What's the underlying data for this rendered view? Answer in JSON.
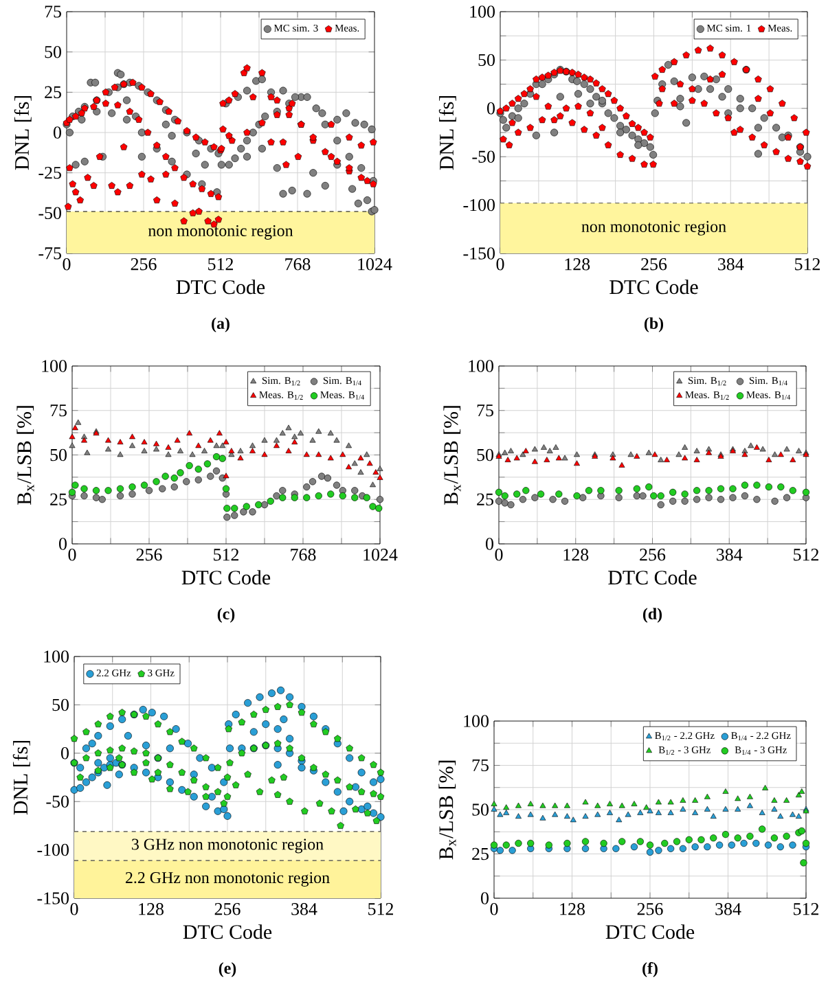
{
  "chart_data": [
    {
      "type": "scatter",
      "xlabel": "DTC Code",
      "ylabel": "DNL [fs]",
      "xlim": [
        0,
        1024
      ],
      "ylim": [
        -75,
        75
      ],
      "xticks": [
        0,
        {
          "value": 128,
          "label": null
        },
        256,
        {
          "value": 384,
          "label": null
        },
        512,
        {
          "value": 640,
          "label": null
        },
        768,
        {
          "value": 896,
          "label": null
        },
        1024
      ],
      "yticks": [
        -75,
        -50,
        -25,
        0,
        25,
        50,
        75
      ],
      "grid": true,
      "legend": "top right",
      "bands": [
        {
          "axis": "y",
          "from": -75,
          "to": -49,
          "label": "non monotonic region",
          "color": "#fff59d"
        }
      ],
      "ref_lines": [
        {
          "axis": "y",
          "value": -49,
          "color": "#000000",
          "line_style": "dashed"
        }
      ],
      "annotations": [
        "**(a)**"
      ],
      "series": [
        {
          "name": "MC sim. 3",
          "color": "#808080",
          "marker": "circle",
          "x": [
            0,
            20,
            40,
            60,
            100,
            140,
            170,
            190,
            210,
            240,
            270,
            300,
            330,
            360,
            400,
            440,
            480,
            505,
            10,
            50,
            100,
            150,
            200,
            250,
            300,
            350,
            400,
            450,
            500,
            30,
            80,
            95,
            60,
            120,
            170,
            180,
            200,
            230,
            250,
            330,
            350,
            430,
            460,
            515,
            540,
            560,
            580,
            600,
            620,
            640,
            660,
            700,
            740,
            780,
            800,
            830,
            860,
            900,
            940,
            980,
            1020,
            530,
            570,
            600,
            630,
            650,
            680,
            720,
            760,
            850,
            900,
            930,
            960,
            990,
            1015,
            600,
            650,
            700,
            720,
            750,
            800,
            820,
            860,
            900,
            950,
            970,
            1000,
            1015,
            1024
          ],
          "values": [
            5,
            10,
            13,
            16,
            20,
            25,
            28,
            30,
            31,
            29,
            25,
            20,
            14,
            8,
            0,
            -5,
            -10,
            -13,
            0,
            8,
            13,
            12,
            8,
            0,
            -10,
            -18,
            -26,
            -32,
            -37,
            -20,
            31,
            31,
            -18,
            -15,
            37,
            36,
            20,
            10,
            -15,
            5,
            -2,
            -13,
            -20,
            -20,
            -20,
            -16,
            -10,
            -5,
            0,
            5,
            10,
            13,
            18,
            22,
            22,
            15,
            5,
            -5,
            -15,
            -22,
            -30,
            18,
            22,
            26,
            32,
            33,
            25,
            26,
            22,
            12,
            8,
            12,
            6,
            5,
            2,
            -15,
            -10,
            -22,
            -38,
            -36,
            -38,
            -25,
            -33,
            -20,
            -35,
            -44,
            -42,
            -49,
            -48
          ]
        },
        {
          "name": "Meas.",
          "color": "#ff0000",
          "x": [
            0,
            30,
            60,
            100,
            130,
            160,
            190,
            220,
            250,
            280,
            310,
            340,
            370,
            400,
            430,
            460,
            490,
            512,
            10,
            50,
            90,
            130,
            170,
            210,
            240,
            270,
            300,
            330,
            360,
            390,
            420,
            450,
            480,
            505,
            5,
            10,
            20,
            30,
            45,
            70,
            90,
            110,
            150,
            170,
            190,
            210,
            250,
            280,
            300,
            330,
            360,
            390,
            420,
            440,
            470,
            490,
            505,
            520,
            540,
            560,
            590,
            600,
            620,
            650,
            680,
            700,
            740,
            780,
            820,
            860,
            900,
            940,
            980,
            1020,
            515,
            550,
            600,
            650,
            700,
            740,
            780,
            820,
            880,
            940,
            1000,
            520,
            540,
            680,
            720,
            730,
            750,
            770,
            880,
            940,
            980,
            1020
          ],
          "values": [
            6,
            10,
            15,
            20,
            25,
            28,
            30,
            31,
            28,
            24,
            19,
            13,
            7,
            1,
            -3,
            -6,
            -9,
            -11,
            8,
            12,
            16,
            18,
            17,
            13,
            8,
            0,
            -8,
            -15,
            -22,
            -28,
            -32,
            -35,
            -38,
            -40,
            -46,
            -22,
            -32,
            -37,
            -42,
            -28,
            -33,
            -15,
            -33,
            -37,
            -9,
            -33,
            -26,
            -29,
            -42,
            -26,
            -44,
            -55,
            -50,
            -49,
            -55,
            -57,
            -54,
            18,
            20,
            24,
            37,
            40,
            22,
            37,
            22,
            20,
            15,
            5,
            -5,
            -12,
            -18,
            -24,
            -28,
            -32,
            -10,
            -5,
            0,
            6,
            11,
            11,
            5,
            -3,
            -15,
            -22,
            -30,
            2,
            -2,
            -6,
            -6,
            -20,
            18,
            -15,
            5,
            -3,
            -8,
            -6
          ]
        }
      ]
    },
    {
      "type": "scatter",
      "xlabel": "DTC Code",
      "ylabel": "DNL [fs]",
      "xlim": [
        0,
        512
      ],
      "ylim": [
        -150,
        100
      ],
      "xticks": [
        0,
        {
          "value": 64,
          "label": null
        },
        128,
        {
          "value": 192,
          "label": null
        },
        256,
        {
          "value": 320,
          "label": null
        },
        384,
        {
          "value": 448,
          "label": null
        },
        512
      ],
      "yticks": [
        -150,
        {
          "value": -125,
          "label": null
        },
        -100,
        {
          "value": -75,
          "label": null
        },
        -50,
        {
          "value": -25,
          "label": null
        },
        0,
        {
          "value": 25,
          "label": null
        },
        50,
        {
          "value": 75,
          "label": null
        },
        100
      ],
      "grid": true,
      "legend": "top right",
      "bands": [
        {
          "axis": "y",
          "from": -150,
          "to": -98,
          "label": "non monotonic region",
          "color": "#fff59d"
        }
      ],
      "ref_lines": [
        {
          "axis": "y",
          "value": -98,
          "color": "#444444",
          "line_style": "dashed"
        }
      ],
      "annotations": [
        "**(b)**"
      ],
      "series": [
        {
          "name": "MC sim. 1",
          "color": "#808080",
          "marker": "circle",
          "x": [
            0,
            5,
            10,
            20,
            30,
            40,
            50,
            60,
            70,
            80,
            90,
            100,
            110,
            120,
            128,
            140,
            150,
            160,
            170,
            180,
            190,
            200,
            210,
            220,
            230,
            240,
            250,
            255,
            30,
            60,
            90,
            100,
            130,
            150,
            170,
            200,
            230,
            258,
            262,
            270,
            280,
            290,
            300,
            310,
            320,
            340,
            360,
            380,
            400,
            420,
            440,
            460,
            480,
            500,
            512,
            300,
            330,
            350,
            370,
            400,
            430,
            470,
            500,
            410,
            430,
            380
          ],
          "values": [
            -5,
            -12,
            -20,
            -8,
            0,
            5,
            15,
            25,
            25,
            30,
            35,
            40,
            38,
            30,
            28,
            25,
            20,
            12,
            5,
            -5,
            -10,
            -18,
            -22,
            -28,
            -32,
            -36,
            -40,
            -48,
            -10,
            -28,
            -25,
            12,
            15,
            5,
            8,
            -25,
            -38,
            -5,
            8,
            25,
            45,
            28,
            10,
            -15,
            32,
            33,
            30,
            20,
            10,
            0,
            -10,
            -20,
            -28,
            -40,
            -50,
            2,
            20,
            20,
            12,
            0,
            -20,
            -30,
            -45,
            40,
            -47,
            -5
          ]
        },
        {
          "name": "Meas.",
          "color": "#ff0000",
          "x": [
            0,
            10,
            20,
            30,
            40,
            50,
            60,
            70,
            80,
            90,
            100,
            110,
            120,
            130,
            140,
            150,
            160,
            170,
            180,
            190,
            200,
            210,
            220,
            230,
            240,
            250,
            5,
            15,
            30,
            50,
            70,
            90,
            100,
            120,
            140,
            160,
            180,
            200,
            220,
            240,
            255,
            20,
            60,
            80,
            110,
            130,
            150,
            170,
            258,
            270,
            290,
            310,
            330,
            350,
            370,
            390,
            410,
            430,
            450,
            470,
            490,
            510,
            265,
            290,
            320,
            340,
            360,
            380,
            400,
            420,
            440,
            460,
            480,
            500,
            512,
            270,
            300,
            320,
            350,
            370,
            390,
            430,
            450,
            480,
            500
          ],
          "values": [
            -3,
            0,
            5,
            10,
            15,
            20,
            30,
            32,
            34,
            37,
            39,
            38,
            37,
            35,
            32,
            30,
            26,
            20,
            15,
            8,
            0,
            -8,
            -16,
            -20,
            -25,
            -30,
            -32,
            -38,
            -25,
            -20,
            -12,
            -12,
            -8,
            -15,
            -22,
            -28,
            -38,
            -48,
            -52,
            -58,
            -58,
            -15,
            12,
            2,
            0,
            2,
            -5,
            -20,
            33,
            40,
            48,
            55,
            60,
            62,
            55,
            48,
            40,
            30,
            20,
            5,
            -10,
            -25,
            5,
            5,
            8,
            5,
            -5,
            -10,
            -22,
            -30,
            -38,
            -45,
            -52,
            -55,
            -60,
            20,
            25,
            20,
            30,
            35,
            -25,
            10,
            -5,
            -30,
            -40
          ]
        }
      ]
    },
    {
      "type": "scatter",
      "xlabel": "DTC Code",
      "ylabel": "B$_{x}$/LSB [%]",
      "xlim": [
        0,
        1024
      ],
      "ylim": [
        0,
        100
      ],
      "xticks": [
        0,
        {
          "value": 128,
          "label": null
        },
        256,
        {
          "value": 384,
          "label": null
        },
        512,
        {
          "value": 640,
          "label": null
        },
        768,
        {
          "value": 896,
          "label": null
        },
        1024
      ],
      "yticks": [
        0,
        {
          "value": 12.5,
          "label": null
        },
        25,
        {
          "value": 37.5,
          "label": null
        },
        50,
        {
          "value": 62.5,
          "label": null
        },
        75,
        {
          "value": 87.5,
          "label": null
        },
        100
      ],
      "grid": true,
      "legend": "top right",
      "annotations": [
        "**(c)**"
      ],
      "series": [
        {
          "name": "Sim. B$_{1/2}$",
          "color": "#808080",
          "marker": "triangle",
          "x": [
            0,
            20,
            40,
            50,
            80,
            120,
            160,
            200,
            240,
            280,
            320,
            360,
            400,
            440,
            480,
            500,
            530,
            560,
            600,
            640,
            680,
            700,
            720,
            740,
            760,
            800,
            820,
            860,
            880,
            920,
            940,
            960,
            980,
            1000,
            1024
          ],
          "values": [
            55,
            68,
            60,
            51,
            63,
            53,
            50,
            55,
            52,
            53,
            50,
            52,
            50,
            52,
            55,
            55,
            50,
            52,
            55,
            58,
            58,
            62,
            65,
            60,
            62,
            58,
            63,
            62,
            58,
            55,
            45,
            40,
            50,
            33,
            42
          ]
        },
        {
          "name": "Sim. B$_{1/4}$",
          "color": "#808080",
          "marker": "circle",
          "x": [
            0,
            40,
            80,
            100,
            160,
            200,
            256,
            300,
            340,
            380,
            420,
            460,
            480,
            500,
            512,
            515,
            540,
            570,
            600,
            640,
            680,
            700,
            740,
            780,
            800,
            830,
            850,
            880,
            900,
            940,
            965,
            1024
          ],
          "values": [
            27,
            27,
            26,
            25,
            27,
            28,
            30,
            31,
            32,
            35,
            36,
            38,
            41,
            37,
            28,
            15,
            16,
            18,
            18,
            22,
            27,
            30,
            28,
            32,
            35,
            38,
            37,
            33,
            30,
            30,
            27,
            25
          ]
        },
        {
          "name": "Meas. B$_{1/2}$",
          "color": "#ff0000",
          "marker": "triangle",
          "x": [
            0,
            10,
            40,
            80,
            120,
            160,
            200,
            240,
            280,
            320,
            350,
            390,
            420,
            460,
            490,
            512,
            512,
            530,
            560,
            600,
            640,
            680,
            720,
            740,
            780,
            820,
            860,
            900,
            920,
            960,
            990,
            1010,
            1024
          ],
          "values": [
            60,
            65,
            58,
            62,
            58,
            57,
            60,
            57,
            56,
            54,
            58,
            62,
            55,
            58,
            62,
            57,
            38,
            52,
            48,
            52,
            50,
            55,
            52,
            57,
            50,
            50,
            48,
            50,
            43,
            48,
            45,
            40,
            37
          ]
        },
        {
          "name": "Meas. B$_{1/4}$",
          "color": "#22cc22",
          "marker": "circle",
          "x": [
            0,
            10,
            40,
            80,
            120,
            160,
            200,
            240,
            280,
            310,
            340,
            360,
            390,
            420,
            450,
            480,
            500,
            512,
            515,
            540,
            580,
            620,
            660,
            700,
            740,
            780,
            820,
            860,
            900,
            940,
            980,
            1000,
            1020
          ],
          "values": [
            29,
            33,
            31,
            30,
            30,
            31,
            32,
            33,
            35,
            38,
            37,
            40,
            44,
            42,
            45,
            49,
            48,
            31,
            20,
            20,
            21,
            22,
            24,
            26,
            26,
            26,
            27,
            28,
            27,
            26,
            26,
            21,
            20
          ]
        }
      ]
    },
    {
      "type": "scatter",
      "xlabel": "DTC Code",
      "ylabel": "B$_{x}$/LSB [%]",
      "xlim": [
        0,
        512
      ],
      "ylim": [
        0,
        100
      ],
      "xticks": [
        0,
        {
          "value": 64,
          "label": null
        },
        128,
        {
          "value": 192,
          "label": null
        },
        256,
        {
          "value": 320,
          "label": null
        },
        384,
        {
          "value": 448,
          "label": null
        },
        512
      ],
      "yticks": [
        0,
        {
          "value": 12.5,
          "label": null
        },
        25,
        {
          "value": 37.5,
          "label": null
        },
        50,
        {
          "value": 62.5,
          "label": null
        },
        75,
        {
          "value": 87.5,
          "label": null
        },
        100
      ],
      "grid": true,
      "legend": "top right",
      "annotations": [
        "**(d)**"
      ],
      "series": [
        {
          "name": "Sim. B$_{1/2}$",
          "color": "#808080",
          "marker": "triangle",
          "x": [
            0,
            10,
            20,
            40,
            60,
            75,
            85,
            95,
            110,
            130,
            160,
            190,
            220,
            250,
            270,
            300,
            310,
            330,
            350,
            370,
            390,
            410,
            420,
            440,
            460,
            480,
            500,
            512
          ],
          "values": [
            50,
            51,
            52,
            50,
            53,
            54,
            52,
            54,
            48,
            50,
            50,
            50,
            50,
            51,
            47,
            50,
            54,
            52,
            53,
            50,
            53,
            52,
            55,
            53,
            50,
            53,
            52,
            51
          ]
        },
        {
          "name": "Sim. B$_{1/4}$",
          "color": "#808080",
          "marker": "circle",
          "x": [
            0,
            10,
            20,
            40,
            60,
            90,
            110,
            140,
            170,
            200,
            230,
            240,
            270,
            290,
            310,
            330,
            350,
            370,
            390,
            410,
            430,
            460,
            480,
            512
          ],
          "values": [
            24,
            23,
            22,
            25,
            26,
            25,
            24,
            26,
            27,
            26,
            27,
            27,
            22,
            24,
            24,
            25,
            26,
            25,
            26,
            27,
            25,
            24,
            26,
            26
          ]
        },
        {
          "name": "Meas. B$_{1/2}$",
          "color": "#ff0000",
          "marker": "triangle",
          "x": [
            0,
            15,
            30,
            45,
            60,
            80,
            100,
            130,
            160,
            190,
            205,
            230,
            260,
            280,
            310,
            330,
            350,
            370,
            390,
            410,
            430,
            450,
            470,
            490,
            512
          ],
          "values": [
            49,
            47,
            48,
            52,
            46,
            47,
            48,
            45,
            49,
            48,
            44,
            49,
            50,
            47,
            48,
            47,
            51,
            49,
            52,
            50,
            54,
            47,
            50,
            47,
            50
          ]
        },
        {
          "name": "Meas. B$_{1/4}$",
          "color": "#22cc22",
          "marker": "circle",
          "x": [
            0,
            10,
            30,
            45,
            70,
            100,
            130,
            150,
            170,
            200,
            230,
            250,
            258,
            270,
            290,
            310,
            330,
            350,
            370,
            390,
            410,
            430,
            450,
            470,
            490,
            512
          ],
          "values": [
            29,
            27,
            28,
            30,
            28,
            28,
            27,
            30,
            30,
            30,
            31,
            32,
            27,
            27,
            29,
            28,
            30,
            30,
            31,
            31,
            33,
            33,
            32,
            32,
            30,
            29
          ]
        }
      ]
    },
    {
      "type": "scatter",
      "xlabel": "DTC Code",
      "ylabel": "DNL [fs]",
      "xlim": [
        0,
        512
      ],
      "ylim": [
        -150,
        100
      ],
      "xticks": [
        0,
        {
          "value": 64,
          "label": null
        },
        128,
        {
          "value": 192,
          "label": null
        },
        256,
        {
          "value": 320,
          "label": null
        },
        384,
        {
          "value": 448,
          "label": null
        },
        512
      ],
      "yticks": [
        -150,
        -100,
        -50,
        0,
        50,
        100
      ],
      "grid": true,
      "legend": "top left",
      "bands": [
        {
          "axis": "y",
          "from": -111,
          "to": -81,
          "label": "3 GHz non monotonic region",
          "color": "#fff8c4"
        },
        {
          "axis": "y",
          "from": -150,
          "to": -111,
          "label": "2.2 GHz non monotonic region",
          "color": "#fff39a"
        }
      ],
      "ref_lines": [
        {
          "axis": "y",
          "value": -81,
          "color": "#444444",
          "line_style": "dashed"
        },
        {
          "axis": "y",
          "value": -111,
          "color": "#444444",
          "line_style": "dashed"
        }
      ],
      "annotations": [
        "**(e)**"
      ],
      "series": [
        {
          "name": "2.2 GHz",
          "color": "#2a9fd6",
          "marker": "circle",
          "x": [
            0,
            10,
            20,
            30,
            40,
            50,
            60,
            70,
            80,
            100,
            120,
            140,
            160,
            180,
            200,
            220,
            240,
            256,
            0,
            20,
            40,
            60,
            80,
            100,
            115,
            130,
            150,
            170,
            190,
            210,
            230,
            250,
            10,
            40,
            60,
            90,
            120,
            140,
            160,
            200,
            230,
            250,
            30,
            55,
            75,
            258,
            270,
            290,
            310,
            330,
            345,
            360,
            380,
            400,
            420,
            440,
            460,
            480,
            500,
            512,
            260,
            280,
            300,
            320,
            340,
            360,
            380,
            400,
            420,
            440,
            460,
            480,
            500,
            512,
            300,
            320,
            340,
            350,
            360,
            380,
            340,
            450,
            470,
            490
          ],
          "values": [
            -38,
            -36,
            -30,
            -25,
            -20,
            -15,
            -12,
            -10,
            -12,
            -15,
            -20,
            -25,
            -30,
            -38,
            -45,
            -55,
            -60,
            -65,
            -10,
            5,
            18,
            28,
            35,
            40,
            45,
            42,
            38,
            25,
            10,
            -5,
            -15,
            -30,
            -15,
            -10,
            -5,
            18,
            8,
            -5,
            5,
            -22,
            -45,
            -58,
            10,
            -33,
            -22,
            30,
            40,
            52,
            58,
            62,
            65,
            58,
            48,
            38,
            25,
            10,
            -5,
            -20,
            -30,
            -27,
            5,
            5,
            5,
            8,
            5,
            0,
            -8,
            -18,
            -30,
            -40,
            -50,
            -58,
            -62,
            -66,
            22,
            30,
            25,
            35,
            15,
            -15,
            -12,
            -60,
            -35,
            -55
          ]
        },
        {
          "name": "3 GHz",
          "color": "#22cc22",
          "x": [
            0,
            20,
            40,
            60,
            80,
            100,
            120,
            140,
            160,
            180,
            200,
            220,
            240,
            256,
            0,
            20,
            40,
            60,
            80,
            100,
            120,
            140,
            160,
            180,
            200,
            220,
            240,
            256,
            10,
            40,
            60,
            80,
            100,
            120,
            140,
            160,
            190,
            220,
            250,
            75,
            130,
            258,
            280,
            300,
            320,
            340,
            360,
            380,
            400,
            420,
            440,
            460,
            480,
            500,
            512,
            260,
            280,
            300,
            320,
            340,
            360,
            380,
            400,
            420,
            440,
            460,
            480,
            500,
            512,
            270,
            290,
            310,
            330,
            350,
            360,
            385,
            410,
            430,
            445,
            470,
            490,
            505,
            340
          ],
          "values": [
            15,
            22,
            30,
            38,
            42,
            40,
            38,
            30,
            22,
            12,
            5,
            -5,
            -15,
            -25,
            -10,
            -5,
            0,
            3,
            5,
            2,
            0,
            -5,
            -12,
            -20,
            -28,
            -35,
            -40,
            -45,
            -25,
            -18,
            -15,
            -12,
            -20,
            -10,
            -20,
            -37,
            -40,
            -45,
            -52,
            -5,
            -27,
            25,
            32,
            40,
            45,
            48,
            50,
            42,
            30,
            22,
            15,
            5,
            -5,
            -12,
            -20,
            -10,
            0,
            5,
            8,
            10,
            5,
            -5,
            -15,
            -22,
            -28,
            -35,
            -40,
            -42,
            -45,
            -33,
            -22,
            -40,
            -28,
            -25,
            -50,
            -60,
            -52,
            -60,
            -75,
            -58,
            -62,
            -70,
            -43
          ]
        }
      ]
    },
    {
      "type": "scatter",
      "xlabel": "DTC Code",
      "ylabel": "B$_{x}$/LSB [%]",
      "xlim": [
        0,
        512
      ],
      "ylim": [
        0,
        100
      ],
      "xticks": [
        0,
        {
          "value": 64,
          "label": null
        },
        128,
        {
          "value": 192,
          "label": null
        },
        256,
        {
          "value": 320,
          "label": null
        },
        384,
        {
          "value": 448,
          "label": null
        },
        512
      ],
      "yticks": [
        0,
        {
          "value": 12.5,
          "label": null
        },
        25,
        {
          "value": 37.5,
          "label": null
        },
        50,
        {
          "value": 62.5,
          "label": null
        },
        75,
        {
          "value": 87.5,
          "label": null
        },
        100
      ],
      "grid": true,
      "legend": "top right",
      "annotations": [
        "**(f)**"
      ],
      "series": [
        {
          "name": "B$_{1/2}$ - 2.2 GHz",
          "color": "#2a9fd6",
          "marker": "triangle",
          "x": [
            0,
            10,
            20,
            40,
            60,
            80,
            100,
            120,
            130,
            150,
            170,
            190,
            205,
            220,
            240,
            256,
            270,
            290,
            310,
            330,
            350,
            360,
            380,
            400,
            420,
            440,
            460,
            470,
            490,
            500,
            512
          ],
          "values": [
            50,
            47,
            48,
            46,
            47,
            45,
            47,
            46,
            44,
            46,
            47,
            48,
            44,
            47,
            48,
            49,
            48,
            48,
            50,
            48,
            50,
            46,
            50,
            50,
            52,
            48,
            50,
            46,
            47,
            46,
            50
          ]
        },
        {
          "name": "B$_{1/4}$ - 2.2 GHz",
          "color": "#2a9fd6",
          "marker": "circle",
          "x": [
            0,
            10,
            30,
            60,
            90,
            120,
            150,
            180,
            200,
            230,
            256,
            270,
            290,
            310,
            330,
            350,
            370,
            390,
            410,
            430,
            450,
            470,
            490,
            512
          ],
          "values": [
            28,
            27,
            27,
            28,
            28,
            28,
            28,
            28,
            28,
            29,
            26,
            27,
            28,
            28,
            29,
            29,
            30,
            30,
            31,
            31,
            30,
            29,
            30,
            29
          ]
        },
        {
          "name": "B$_{1/2}$ - 3 GHz",
          "color": "#22cc22",
          "marker": "triangle",
          "x": [
            0,
            20,
            40,
            60,
            80,
            100,
            120,
            150,
            170,
            190,
            210,
            230,
            250,
            270,
            290,
            310,
            330,
            350,
            380,
            400,
            420,
            445,
            460,
            480,
            500,
            505,
            512
          ],
          "values": [
            53,
            51,
            52,
            53,
            52,
            52,
            52,
            54,
            52,
            53,
            52,
            53,
            51,
            54,
            54,
            55,
            55,
            57,
            60,
            56,
            57,
            62,
            55,
            55,
            58,
            60,
            49
          ]
        },
        {
          "name": "B$_{1/4}$ - 3 GHz",
          "color": "#22cc22",
          "marker": "circle",
          "x": [
            0,
            20,
            40,
            60,
            90,
            120,
            150,
            180,
            210,
            240,
            256,
            280,
            300,
            320,
            340,
            360,
            380,
            400,
            420,
            440,
            460,
            480,
            500,
            505,
            508,
            512
          ],
          "values": [
            30,
            30,
            31,
            31,
            30,
            31,
            32,
            31,
            32,
            32,
            30,
            31,
            32,
            33,
            33,
            34,
            36,
            34,
            35,
            39,
            34,
            35,
            37,
            38,
            20,
            31
          ]
        }
      ]
    }
  ]
}
